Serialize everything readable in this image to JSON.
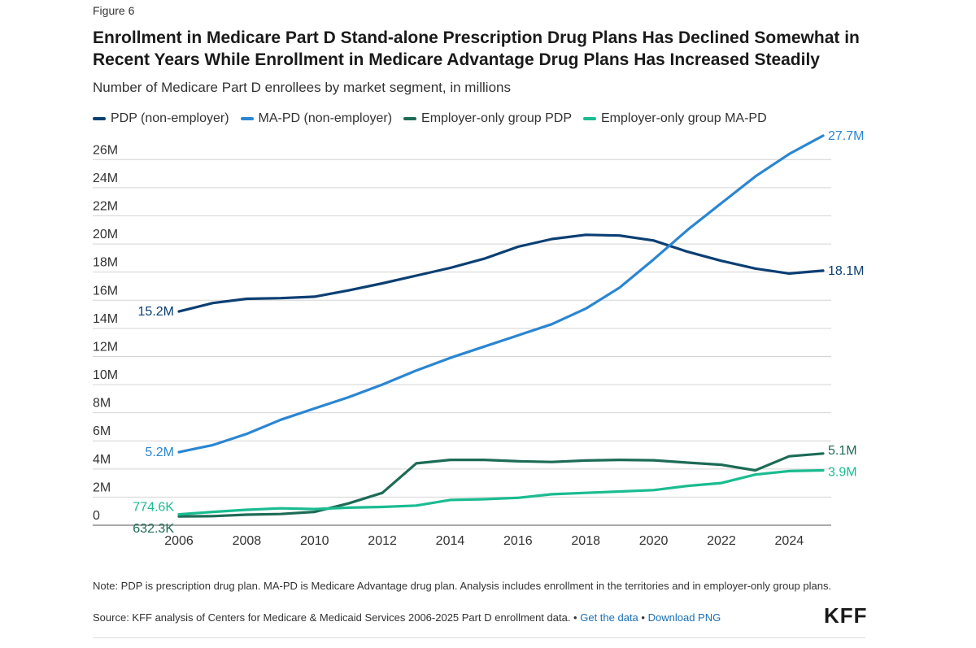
{
  "figure_label": "Figure 6",
  "chart_data": {
    "type": "line",
    "title": "Enrollment in Medicare Part D Stand-alone Prescription Drug Plans Has Declined Somewhat in Recent Years While Enrollment in Medicare Advantage Drug Plans Has Increased Steadily",
    "subtitle": "Number of Medicare Part D enrollees by market segment, in millions",
    "xlabel": "",
    "ylabel": "",
    "x": [
      2006,
      2007,
      2008,
      2009,
      2010,
      2011,
      2012,
      2013,
      2014,
      2015,
      2016,
      2017,
      2018,
      2019,
      2020,
      2021,
      2022,
      2023,
      2024,
      2025
    ],
    "xlim": [
      2006,
      2025
    ],
    "ylim": [
      0,
      27
    ],
    "x_ticks": [
      2006,
      2008,
      2010,
      2012,
      2014,
      2016,
      2018,
      2020,
      2022,
      2024
    ],
    "y_ticks": [
      {
        "value": 0,
        "label": "0"
      },
      {
        "value": 2,
        "label": "2M"
      },
      {
        "value": 4,
        "label": "4M"
      },
      {
        "value": 6,
        "label": "6M"
      },
      {
        "value": 8,
        "label": "8M"
      },
      {
        "value": 10,
        "label": "10M"
      },
      {
        "value": 12,
        "label": "12M"
      },
      {
        "value": 14,
        "label": "14M"
      },
      {
        "value": 16,
        "label": "16M"
      },
      {
        "value": 18,
        "label": "18M"
      },
      {
        "value": 20,
        "label": "20M"
      },
      {
        "value": 22,
        "label": "22M"
      },
      {
        "value": 24,
        "label": "24M"
      },
      {
        "value": 26,
        "label": "26M"
      }
    ],
    "grid": true,
    "legend_position": "top-left",
    "series": [
      {
        "name": "PDP (non-employer)",
        "color": "#0b3f73",
        "values": [
          15.2,
          15.8,
          16.1,
          16.15,
          16.25,
          16.7,
          17.2,
          17.75,
          18.3,
          18.95,
          19.8,
          20.35,
          20.65,
          20.6,
          20.25,
          19.45,
          18.8,
          18.25,
          17.9,
          18.1
        ],
        "start_label": "15.2M",
        "end_label": "18.1M"
      },
      {
        "name": "MA-PD (non-employer)",
        "color": "#2a86d2",
        "values": [
          5.2,
          5.7,
          6.5,
          7.5,
          8.3,
          9.1,
          10.0,
          11.0,
          11.9,
          12.7,
          13.5,
          14.3,
          15.4,
          16.9,
          18.9,
          21.0,
          22.9,
          24.8,
          26.4,
          27.7
        ],
        "start_label": "5.2M",
        "end_label": "27.7M"
      },
      {
        "name": "Employer-only group PDP",
        "color": "#1d6b56",
        "values": [
          0.6323,
          0.65,
          0.75,
          0.8,
          0.95,
          1.55,
          2.3,
          4.4,
          4.65,
          4.65,
          4.55,
          4.5,
          4.6,
          4.65,
          4.62,
          4.45,
          4.3,
          3.9,
          4.9,
          5.1
        ],
        "start_label": "632.3K",
        "end_label": "5.1M"
      },
      {
        "name": "Employer-only group MA-PD",
        "color": "#1abc91",
        "values": [
          0.7746,
          0.95,
          1.1,
          1.2,
          1.15,
          1.25,
          1.3,
          1.4,
          1.8,
          1.85,
          1.95,
          2.2,
          2.3,
          2.4,
          2.5,
          2.8,
          3.0,
          3.6,
          3.85,
          3.9
        ],
        "start_label": "774.6K",
        "end_label": "3.9M"
      }
    ]
  },
  "footer": {
    "note": "Note: PDP is prescription drug plan. MA-PD is Medicare Advantage drug plan. Analysis includes enrollment in the territories and in employer-only group plans.",
    "source_text": "Source: KFF analysis of Centers for Medicare & Medicaid Services 2006-2025 Part D enrollment data. •",
    "get_data_link": "Get the data",
    "separator": "•",
    "download_link": "Download PNG",
    "logo": "KFF"
  }
}
